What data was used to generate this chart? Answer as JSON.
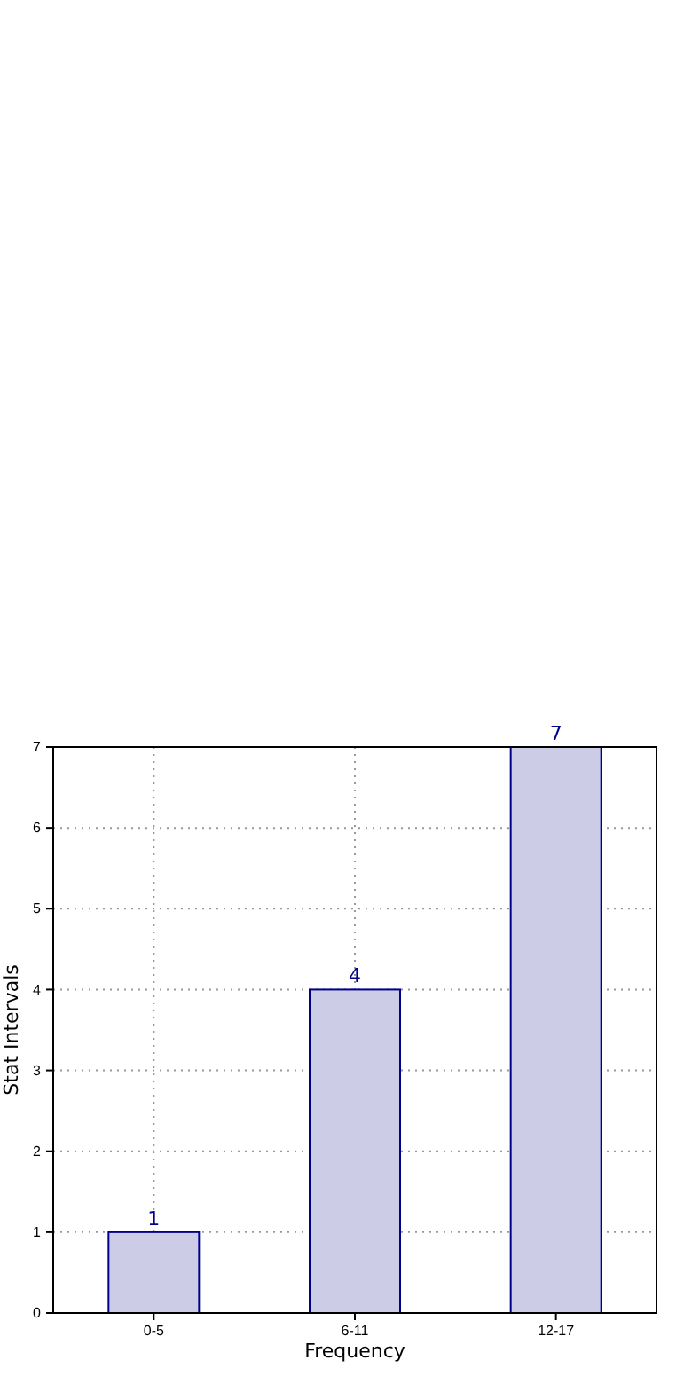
{
  "chart_data": {
    "type": "bar",
    "xlabel": "Frequency",
    "ylabel": "Stat Intervals",
    "categories": [
      "0-5",
      "6-11",
      "12-17"
    ],
    "values": [
      1,
      4,
      7
    ],
    "color": "#cccce6",
    "ylim": [
      0,
      7
    ],
    "yticks": [
      0,
      1,
      2,
      3,
      4,
      5,
      6,
      7
    ],
    "grid": true,
    "data_labels": true
  }
}
